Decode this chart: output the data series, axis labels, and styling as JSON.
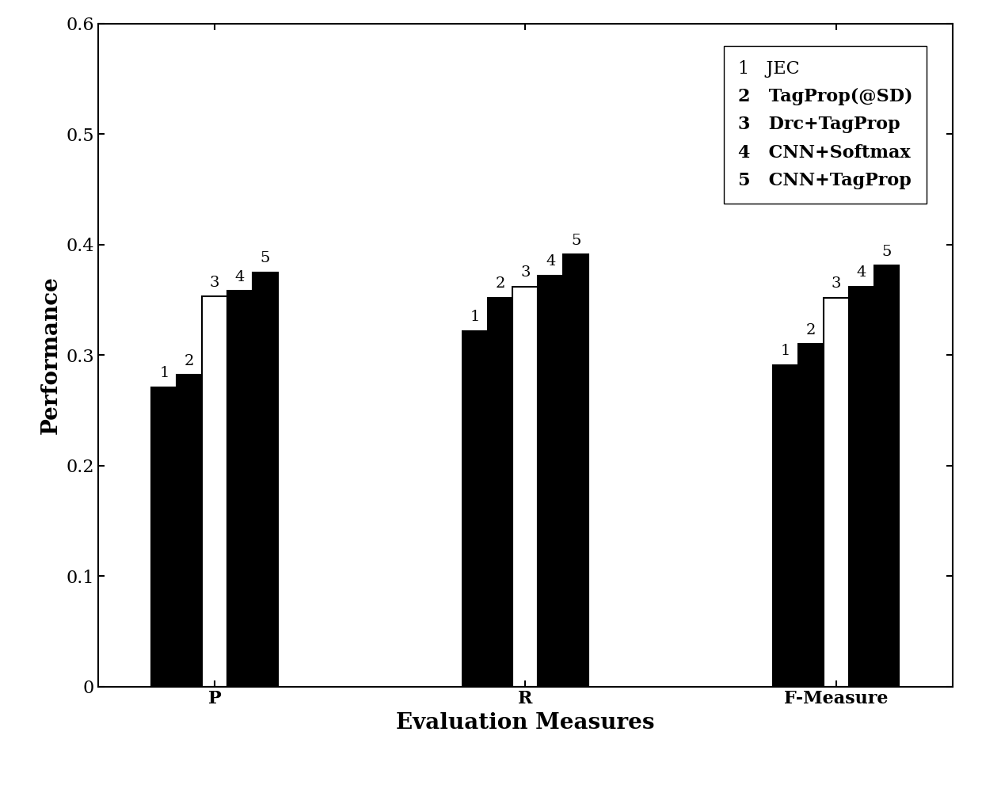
{
  "groups": [
    "P",
    "R",
    "F-Measure"
  ],
  "series": [
    {
      "label": "JEC",
      "number": "1",
      "color": "#000000",
      "values": [
        0.271,
        0.322,
        0.291
      ]
    },
    {
      "label": "TagProp(@SD)",
      "number": "2",
      "color": "#000000",
      "values": [
        0.282,
        0.352,
        0.31
      ]
    },
    {
      "label": "Drc+TagProp",
      "number": "3",
      "color": "#ffffff",
      "values": [
        0.353,
        0.362,
        0.352
      ]
    },
    {
      "label": "CNN+Softmax",
      "number": "4",
      "color": "#000000",
      "values": [
        0.358,
        0.372,
        0.362
      ]
    },
    {
      "label": "CNN+TagProp",
      "number": "5",
      "color": "#000000",
      "values": [
        0.375,
        0.391,
        0.381
      ]
    }
  ],
  "xlabel": "Evaluation Measures",
  "ylabel": "Performance",
  "ylim": [
    0,
    0.6
  ],
  "yticks": [
    0,
    0.1,
    0.2,
    0.3,
    0.4,
    0.5,
    0.6
  ],
  "bar_number_fontsize": 14,
  "axis_label_fontsize": 20,
  "tick_fontsize": 16,
  "legend_fontsize": 16,
  "background_color": "#ffffff",
  "bar_width": 0.13,
  "group_positions": [
    1.0,
    2.6,
    4.2
  ]
}
